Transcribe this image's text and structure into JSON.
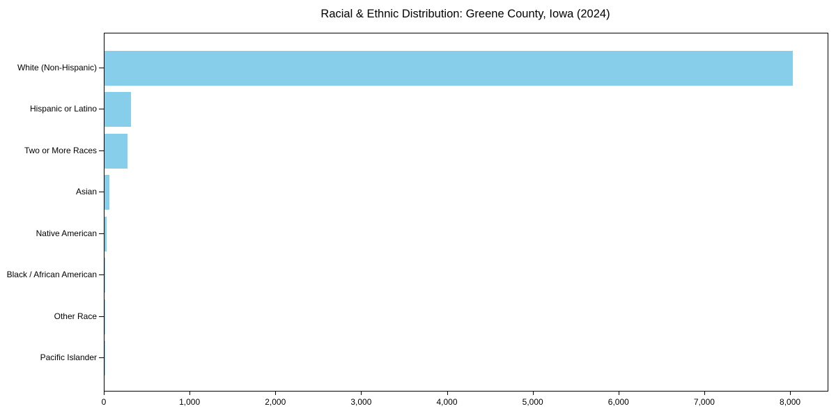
{
  "title": "Racial & Ethnic Distribution: Greene County, Iowa (2024)",
  "chart_data": {
    "type": "bar",
    "orientation": "horizontal",
    "title": "Racial & Ethnic Distribution: Greene County, Iowa (2024)",
    "categories": [
      "White (Non-Hispanic)",
      "Hispanic or Latino",
      "Two or More Races",
      "Asian",
      "Native American",
      "Black / African American",
      "Other Race",
      "Pacific Islander"
    ],
    "values": [
      8025,
      310,
      270,
      60,
      25,
      12,
      6,
      2
    ],
    "xlabel": "",
    "ylabel": "",
    "xlim": [
      0,
      8430
    ],
    "xticks": [
      0,
      1000,
      2000,
      3000,
      4000,
      5000,
      6000,
      7000,
      8000
    ],
    "xtick_labels": [
      "0",
      "1,000",
      "2,000",
      "3,000",
      "4,000",
      "5,000",
      "6,000",
      "7,000",
      "8,000"
    ],
    "bar_color": "#87CEEB",
    "spine_color": "#000000",
    "text_color": "#000000",
    "grid": false,
    "legend": null
  }
}
